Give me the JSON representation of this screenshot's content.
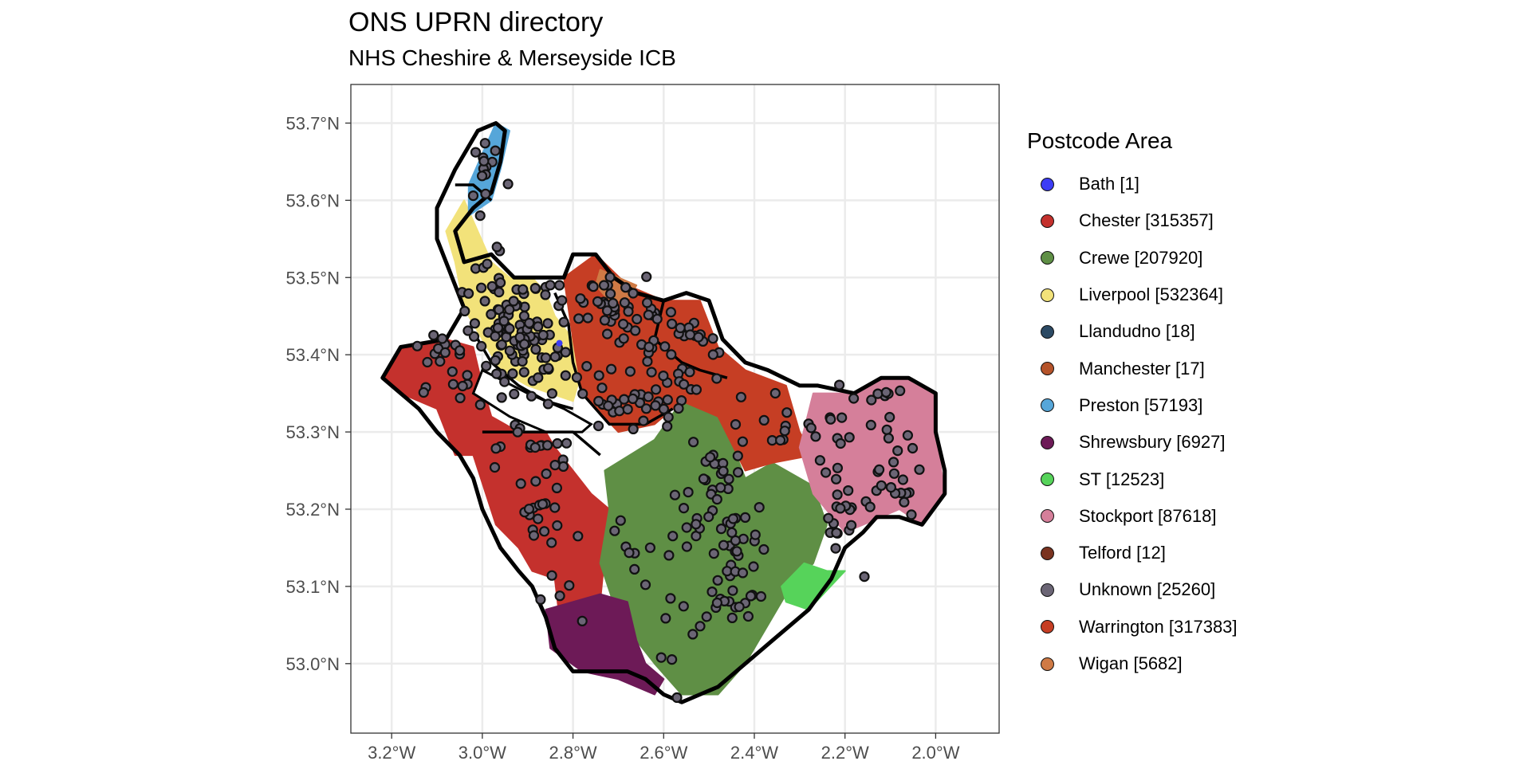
{
  "header": {
    "title": "ONS UPRN directory",
    "subtitle": "NHS Cheshire & Merseyside ICB"
  },
  "legend": {
    "title": "Postcode Area",
    "items": [
      {
        "label": "Bath [1]",
        "color": "#3d3df5"
      },
      {
        "label": "Chester [315357]",
        "color": "#c4312d"
      },
      {
        "label": "Crewe [207920]",
        "color": "#5f8f45"
      },
      {
        "label": "Liverpool [532364]",
        "color": "#f2e27a"
      },
      {
        "label": "Llandudno [18]",
        "color": "#2c4a64"
      },
      {
        "label": "Manchester [17]",
        "color": "#b5532a"
      },
      {
        "label": "Preston [57193]",
        "color": "#56a6d9"
      },
      {
        "label": "Shrewsbury [6927]",
        "color": "#6d1a57"
      },
      {
        "label": "ST [12523]",
        "color": "#56d35a"
      },
      {
        "label": "Stockport [87618]",
        "color": "#d57f9a"
      },
      {
        "label": "Telford [12]",
        "color": "#7a3320"
      },
      {
        "label": "Unknown [25260]",
        "color": "#6b6575"
      },
      {
        "label": "Warrington [317383]",
        "color": "#c63e24"
      },
      {
        "label": "Wigan [5682]",
        "color": "#cf7a45"
      }
    ]
  },
  "chart_data": {
    "type": "map",
    "projection": "lon-lat",
    "xlim": [
      -3.29,
      -1.86
    ],
    "ylim": [
      52.91,
      53.75
    ],
    "x_ticks": [
      -3.2,
      -3.0,
      -2.8,
      -2.6,
      -2.4,
      -2.2,
      -2.0
    ],
    "x_tick_labels": [
      "3.2°W",
      "3.0°W",
      "2.8°W",
      "2.6°W",
      "2.4°W",
      "2.2°W",
      "2.0°W"
    ],
    "y_ticks": [
      53.0,
      53.1,
      53.2,
      53.3,
      53.4,
      53.5,
      53.6,
      53.7
    ],
    "y_tick_labels": [
      "53.0°N",
      "53.1°N",
      "53.2°N",
      "53.3°N",
      "53.4°N",
      "53.5°N",
      "53.6°N",
      "53.7°N"
    ],
    "grid": true,
    "legend_position": "right",
    "outline_color": "#000000",
    "unknown_point_color": "#6b6575",
    "regions": [
      {
        "area": "Chester",
        "color": "#c4312d",
        "polygon": [
          [
            -3.22,
            53.37
          ],
          [
            -3.18,
            53.41
          ],
          [
            -3.08,
            53.42
          ],
          [
            -3.02,
            53.41
          ],
          [
            -3.0,
            53.36
          ],
          [
            -2.98,
            53.32
          ],
          [
            -2.92,
            53.3
          ],
          [
            -2.86,
            53.3
          ],
          [
            -2.84,
            53.28
          ],
          [
            -2.76,
            53.22
          ],
          [
            -2.72,
            53.2
          ],
          [
            -2.74,
            53.08
          ],
          [
            -2.71,
            53.05
          ],
          [
            -2.83,
            53.06
          ],
          [
            -2.84,
            53.11
          ],
          [
            -2.89,
            53.12
          ],
          [
            -2.92,
            53.15
          ],
          [
            -2.97,
            53.18
          ],
          [
            -3.02,
            53.27
          ],
          [
            -3.06,
            53.27
          ],
          [
            -3.1,
            53.33
          ],
          [
            -3.18,
            53.35
          ]
        ]
      },
      {
        "area": "Crewe",
        "color": "#5f8f45",
        "polygon": [
          [
            -2.73,
            53.25
          ],
          [
            -2.62,
            53.29
          ],
          [
            -2.56,
            53.34
          ],
          [
            -2.48,
            53.33
          ],
          [
            -2.42,
            53.24
          ],
          [
            -2.36,
            53.26
          ],
          [
            -2.27,
            53.23
          ],
          [
            -2.24,
            53.18
          ],
          [
            -2.27,
            53.13
          ],
          [
            -2.33,
            53.09
          ],
          [
            -2.38,
            53.04
          ],
          [
            -2.42,
            53.0
          ],
          [
            -2.48,
            52.96
          ],
          [
            -2.56,
            52.96
          ],
          [
            -2.62,
            53.0
          ],
          [
            -2.7,
            53.06
          ],
          [
            -2.74,
            53.13
          ],
          [
            -2.72,
            53.2
          ]
        ]
      },
      {
        "area": "Liverpool",
        "color": "#f2e27a",
        "polygon": [
          [
            -3.04,
            53.6
          ],
          [
            -2.98,
            53.52
          ],
          [
            -2.94,
            53.5
          ],
          [
            -2.89,
            53.5
          ],
          [
            -2.86,
            53.48
          ],
          [
            -2.84,
            53.45
          ],
          [
            -2.8,
            53.42
          ],
          [
            -2.78,
            53.38
          ],
          [
            -2.8,
            53.34
          ],
          [
            -2.9,
            53.36
          ],
          [
            -2.96,
            53.38
          ],
          [
            -3.0,
            53.42
          ],
          [
            -3.04,
            53.46
          ],
          [
            -3.06,
            53.52
          ],
          [
            -3.08,
            53.56
          ]
        ]
      },
      {
        "area": "Preston",
        "color": "#56a6d9",
        "polygon": [
          [
            -3.03,
            53.62
          ],
          [
            -3.0,
            53.66
          ],
          [
            -2.97,
            53.7
          ],
          [
            -2.94,
            53.69
          ],
          [
            -2.96,
            53.64
          ],
          [
            -2.98,
            53.6
          ],
          [
            -3.03,
            53.58
          ]
        ]
      },
      {
        "area": "Warrington",
        "color": "#c63e24",
        "polygon": [
          [
            -2.82,
            53.5
          ],
          [
            -2.75,
            53.53
          ],
          [
            -2.68,
            53.49
          ],
          [
            -2.6,
            53.47
          ],
          [
            -2.52,
            53.47
          ],
          [
            -2.48,
            53.41
          ],
          [
            -2.42,
            53.38
          ],
          [
            -2.33,
            53.36
          ],
          [
            -2.3,
            53.3
          ],
          [
            -2.27,
            53.27
          ],
          [
            -2.36,
            53.26
          ],
          [
            -2.42,
            53.25
          ],
          [
            -2.48,
            53.32
          ],
          [
            -2.56,
            53.34
          ],
          [
            -2.62,
            53.31
          ],
          [
            -2.7,
            53.3
          ],
          [
            -2.78,
            53.35
          ],
          [
            -2.8,
            53.42
          ]
        ]
      },
      {
        "area": "Stockport",
        "color": "#d57f9a",
        "polygon": [
          [
            -2.27,
            53.35
          ],
          [
            -2.18,
            53.35
          ],
          [
            -2.12,
            53.37
          ],
          [
            -2.06,
            53.37
          ],
          [
            -2.0,
            53.35
          ],
          [
            -2.0,
            53.3
          ],
          [
            -1.98,
            53.22
          ],
          [
            -2.03,
            53.18
          ],
          [
            -2.08,
            53.2
          ],
          [
            -2.12,
            53.19
          ],
          [
            -2.16,
            53.18
          ],
          [
            -2.2,
            53.17
          ],
          [
            -2.27,
            53.22
          ],
          [
            -2.3,
            53.28
          ]
        ]
      },
      {
        "area": "Shrewsbury",
        "color": "#6d1a57",
        "polygon": [
          [
            -2.86,
            53.07
          ],
          [
            -2.8,
            53.08
          ],
          [
            -2.74,
            53.09
          ],
          [
            -2.68,
            53.08
          ],
          [
            -2.66,
            53.03
          ],
          [
            -2.64,
            53.0
          ],
          [
            -2.6,
            52.98
          ],
          [
            -2.62,
            52.96
          ],
          [
            -2.7,
            52.98
          ],
          [
            -2.78,
            52.99
          ],
          [
            -2.85,
            53.02
          ]
        ]
      },
      {
        "area": "ST",
        "color": "#56d35a",
        "polygon": [
          [
            -2.34,
            53.1
          ],
          [
            -2.29,
            53.13
          ],
          [
            -2.24,
            53.12
          ],
          [
            -2.2,
            53.12
          ],
          [
            -2.28,
            53.07
          ],
          [
            -2.33,
            53.08
          ]
        ]
      },
      {
        "area": "Wigan",
        "color": "#cf7a45",
        "polygon": [
          [
            -2.74,
            53.51
          ],
          [
            -2.7,
            53.5
          ],
          [
            -2.66,
            53.49
          ],
          [
            -2.68,
            53.47
          ],
          [
            -2.72,
            53.47
          ],
          [
            -2.75,
            53.49
          ]
        ]
      }
    ],
    "boundary": [
      [
        -3.22,
        53.37
      ],
      [
        -3.18,
        53.41
      ],
      [
        -3.08,
        53.42
      ],
      [
        -3.04,
        53.46
      ],
      [
        -3.08,
        53.52
      ],
      [
        -3.1,
        53.55
      ],
      [
        -3.1,
        53.59
      ],
      [
        -3.06,
        53.64
      ],
      [
        -3.01,
        53.69
      ],
      [
        -2.97,
        53.7
      ],
      [
        -2.95,
        53.69
      ],
      [
        -2.96,
        53.65
      ],
      [
        -2.98,
        53.61
      ],
      [
        -3.02,
        53.59
      ],
      [
        -3.06,
        53.56
      ],
      [
        -3.04,
        53.52
      ],
      [
        -2.98,
        53.53
      ],
      [
        -2.93,
        53.5
      ],
      [
        -2.87,
        53.5
      ],
      [
        -2.82,
        53.5
      ],
      [
        -2.8,
        53.53
      ],
      [
        -2.75,
        53.53
      ],
      [
        -2.71,
        53.5
      ],
      [
        -2.66,
        53.48
      ],
      [
        -2.6,
        53.47
      ],
      [
        -2.55,
        53.48
      ],
      [
        -2.5,
        53.47
      ],
      [
        -2.47,
        53.42
      ],
      [
        -2.42,
        53.39
      ],
      [
        -2.37,
        53.38
      ],
      [
        -2.3,
        53.36
      ],
      [
        -2.26,
        53.36
      ],
      [
        -2.18,
        53.35
      ],
      [
        -2.12,
        53.37
      ],
      [
        -2.06,
        53.37
      ],
      [
        -2.0,
        53.35
      ],
      [
        -2.0,
        53.3
      ],
      [
        -1.98,
        53.25
      ],
      [
        -1.98,
        53.22
      ],
      [
        -2.03,
        53.18
      ],
      [
        -2.08,
        53.19
      ],
      [
        -2.13,
        53.19
      ],
      [
        -2.16,
        53.17
      ],
      [
        -2.2,
        53.15
      ],
      [
        -2.23,
        53.11
      ],
      [
        -2.28,
        53.07
      ],
      [
        -2.32,
        53.05
      ],
      [
        -2.36,
        53.03
      ],
      [
        -2.4,
        53.01
      ],
      [
        -2.44,
        52.99
      ],
      [
        -2.48,
        52.97
      ],
      [
        -2.52,
        52.96
      ],
      [
        -2.56,
        52.95
      ],
      [
        -2.6,
        52.96
      ],
      [
        -2.64,
        52.98
      ],
      [
        -2.68,
        52.99
      ],
      [
        -2.74,
        52.99
      ],
      [
        -2.8,
        52.99
      ],
      [
        -2.84,
        53.02
      ],
      [
        -2.86,
        53.06
      ],
      [
        -2.89,
        53.1
      ],
      [
        -2.92,
        53.12
      ],
      [
        -2.96,
        53.15
      ],
      [
        -3.0,
        53.2
      ],
      [
        -3.02,
        53.24
      ],
      [
        -3.05,
        53.27
      ],
      [
        -3.1,
        53.3
      ],
      [
        -3.14,
        53.33
      ],
      [
        -3.18,
        53.35
      ]
    ],
    "internal_borders": [
      [
        [
          -3.02,
          53.43
        ],
        [
          -2.98,
          53.39
        ],
        [
          -2.92,
          53.36
        ],
        [
          -2.86,
          53.34
        ],
        [
          -2.8,
          53.33
        ]
      ],
      [
        [
          -2.84,
          53.48
        ],
        [
          -2.81,
          53.44
        ],
        [
          -2.8,
          53.39
        ],
        [
          -2.78,
          53.35
        ],
        [
          -2.72,
          53.31
        ],
        [
          -2.64,
          53.31
        ],
        [
          -2.58,
          53.33
        ]
      ],
      [
        [
          -3.06,
          53.62
        ],
        [
          -3.02,
          53.62
        ],
        [
          -2.98,
          53.6
        ]
      ],
      [
        [
          -2.6,
          53.47
        ],
        [
          -2.62,
          53.42
        ],
        [
          -2.56,
          53.39
        ],
        [
          -2.52,
          53.38
        ],
        [
          -2.46,
          53.37
        ]
      ],
      [
        [
          -3.0,
          53.3
        ],
        [
          -2.92,
          53.3
        ],
        [
          -2.86,
          53.3
        ],
        [
          -2.8,
          53.3
        ],
        [
          -2.74,
          53.27
        ]
      ]
    ],
    "estuary": [
      [
        -3.0,
        53.38
      ],
      [
        -2.9,
        53.35
      ],
      [
        -2.82,
        53.33
      ],
      [
        -2.76,
        53.31
      ],
      [
        -2.78,
        53.3
      ],
      [
        -2.86,
        53.3
      ],
      [
        -2.94,
        53.32
      ],
      [
        -3.02,
        53.35
      ]
    ],
    "point_clusters": [
      {
        "lon": -3.0,
        "lat": 53.64,
        "sd": [
          0.02,
          0.03
        ],
        "n": 14
      },
      {
        "lon": -2.95,
        "lat": 53.45,
        "sd": [
          0.05,
          0.04
        ],
        "n": 70
      },
      {
        "lon": -2.88,
        "lat": 53.42,
        "sd": [
          0.04,
          0.04
        ],
        "n": 50
      },
      {
        "lon": -2.7,
        "lat": 53.45,
        "sd": [
          0.06,
          0.03
        ],
        "n": 50
      },
      {
        "lon": -2.55,
        "lat": 53.4,
        "sd": [
          0.05,
          0.03
        ],
        "n": 30
      },
      {
        "lon": -2.66,
        "lat": 53.34,
        "sd": [
          0.05,
          0.02
        ],
        "n": 30
      },
      {
        "lon": -3.08,
        "lat": 53.38,
        "sd": [
          0.04,
          0.03
        ],
        "n": 20
      },
      {
        "lon": -2.9,
        "lat": 53.27,
        "sd": [
          0.05,
          0.02
        ],
        "n": 20
      },
      {
        "lon": -2.88,
        "lat": 53.19,
        "sd": [
          0.03,
          0.02
        ],
        "n": 15
      },
      {
        "lon": -2.5,
        "lat": 53.24,
        "sd": [
          0.03,
          0.02
        ],
        "n": 18
      },
      {
        "lon": -2.52,
        "lat": 53.19,
        "sd": [
          0.04,
          0.02
        ],
        "n": 15
      },
      {
        "lon": -2.44,
        "lat": 53.09,
        "sd": [
          0.03,
          0.03
        ],
        "n": 25
      },
      {
        "lon": -2.42,
        "lat": 53.17,
        "sd": [
          0.03,
          0.03
        ],
        "n": 12
      },
      {
        "lon": -2.38,
        "lat": 53.3,
        "sd": [
          0.05,
          0.02
        ],
        "n": 15
      },
      {
        "lon": -2.2,
        "lat": 53.28,
        "sd": [
          0.06,
          0.05
        ],
        "n": 25
      },
      {
        "lon": -2.08,
        "lat": 53.25,
        "sd": [
          0.02,
          0.03
        ],
        "n": 15
      },
      {
        "lon": -2.12,
        "lat": 53.35,
        "sd": [
          0.04,
          0.01
        ],
        "n": 8
      },
      {
        "lon": -2.22,
        "lat": 53.18,
        "sd": [
          0.03,
          0.02
        ],
        "n": 10
      },
      {
        "lon": -2.65,
        "lat": 53.13,
        "sd": [
          0.04,
          0.05
        ],
        "n": 10
      },
      {
        "lon": -2.53,
        "lat": 53.08,
        "sd": [
          0.03,
          0.03
        ],
        "n": 6
      },
      {
        "lon": -2.82,
        "lat": 53.1,
        "sd": [
          0.03,
          0.02
        ],
        "n": 5
      },
      {
        "lon": -2.6,
        "lat": 53.02,
        "sd": [
          0.02,
          0.02
        ],
        "n": 4
      }
    ]
  }
}
